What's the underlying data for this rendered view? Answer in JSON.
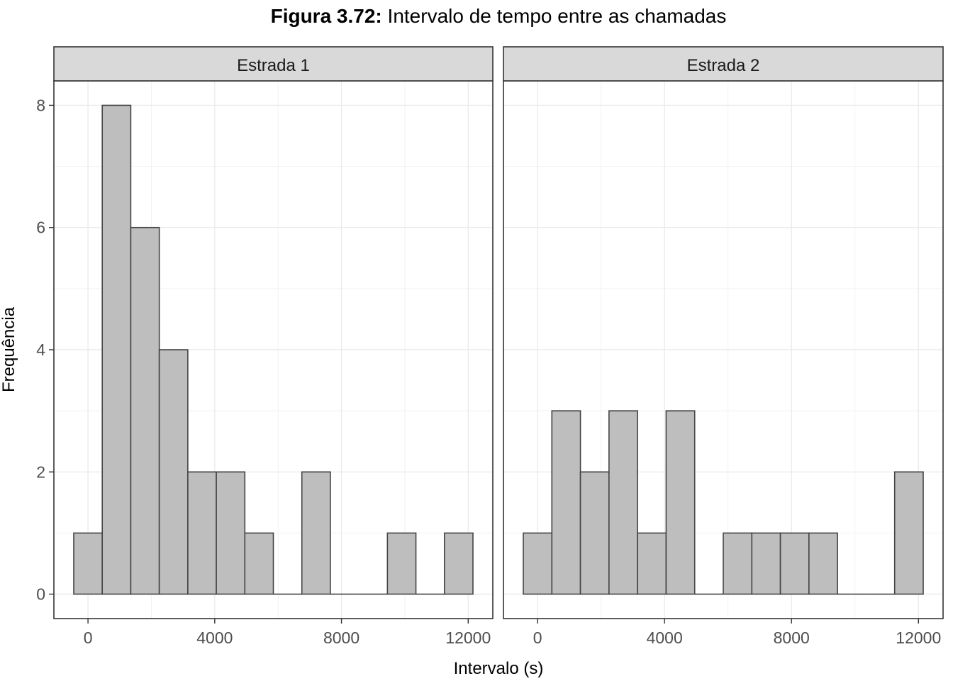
{
  "chart_data": {
    "type": "bar",
    "title_prefix": "Figura 3.72:",
    "title": "Intervalo de tempo entre as chamadas",
    "xlabel": "Intervalo (s)",
    "ylabel": "Frequência",
    "xlim": [
      -450,
      12150
    ],
    "ylim": [
      -0.4,
      8.4
    ],
    "x_ticks": [
      0,
      4000,
      8000,
      12000
    ],
    "x_tick_labels": [
      "0",
      "4000",
      "8000",
      "12000"
    ],
    "y_ticks": [
      0,
      2,
      4,
      6,
      8
    ],
    "y_tick_labels": [
      "0",
      "2",
      "4",
      "6",
      "8"
    ],
    "bin_width": 900,
    "grid": true,
    "bar_fill": "#bebebe",
    "bar_stroke": "#444444",
    "panels": [
      {
        "name": "Estrada 1",
        "bins": [
          {
            "x0": -450,
            "x1": 450,
            "count": 1
          },
          {
            "x0": 450,
            "x1": 1350,
            "count": 8
          },
          {
            "x0": 1350,
            "x1": 2250,
            "count": 6
          },
          {
            "x0": 2250,
            "x1": 3150,
            "count": 4
          },
          {
            "x0": 3150,
            "x1": 4050,
            "count": 2
          },
          {
            "x0": 4050,
            "x1": 4950,
            "count": 2
          },
          {
            "x0": 4950,
            "x1": 5850,
            "count": 1
          },
          {
            "x0": 5850,
            "x1": 6750,
            "count": 0
          },
          {
            "x0": 6750,
            "x1": 7650,
            "count": 2
          },
          {
            "x0": 7650,
            "x1": 8550,
            "count": 0
          },
          {
            "x0": 8550,
            "x1": 9450,
            "count": 0
          },
          {
            "x0": 9450,
            "x1": 10350,
            "count": 1
          },
          {
            "x0": 10350,
            "x1": 11250,
            "count": 0
          },
          {
            "x0": 11250,
            "x1": 12150,
            "count": 1
          }
        ]
      },
      {
        "name": "Estrada 2",
        "bins": [
          {
            "x0": -450,
            "x1": 450,
            "count": 1
          },
          {
            "x0": 450,
            "x1": 1350,
            "count": 3
          },
          {
            "x0": 1350,
            "x1": 2250,
            "count": 2
          },
          {
            "x0": 2250,
            "x1": 3150,
            "count": 3
          },
          {
            "x0": 3150,
            "x1": 4050,
            "count": 1
          },
          {
            "x0": 4050,
            "x1": 4950,
            "count": 3
          },
          {
            "x0": 4950,
            "x1": 5850,
            "count": 0
          },
          {
            "x0": 5850,
            "x1": 6750,
            "count": 1
          },
          {
            "x0": 6750,
            "x1": 7650,
            "count": 1
          },
          {
            "x0": 7650,
            "x1": 8550,
            "count": 1
          },
          {
            "x0": 8550,
            "x1": 9450,
            "count": 1
          },
          {
            "x0": 9450,
            "x1": 10350,
            "count": 0
          },
          {
            "x0": 10350,
            "x1": 11250,
            "count": 0
          },
          {
            "x0": 11250,
            "x1": 12150,
            "count": 2
          }
        ]
      }
    ]
  }
}
